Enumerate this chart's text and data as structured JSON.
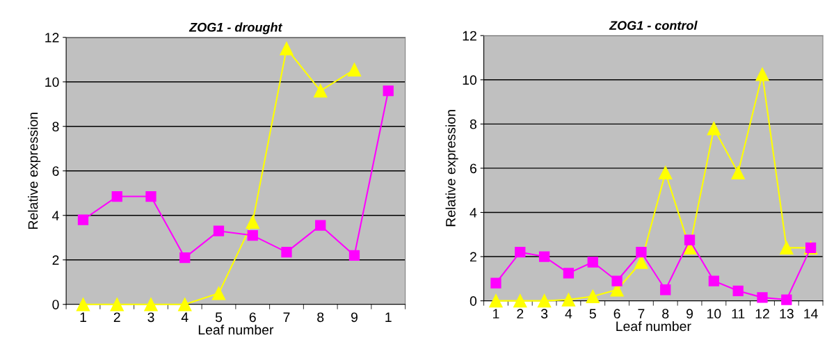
{
  "chart_data": [
    {
      "type": "line",
      "title": "ZOG1 - drought",
      "xlabel": "Leaf number",
      "ylabel": "Relative expression",
      "categories": [
        "1",
        "2",
        "3",
        "4",
        "5",
        "6",
        "7",
        "8",
        "9",
        "1"
      ],
      "series": [
        {
          "color": "#ff00ff",
          "marker": "square",
          "values": [
            3.8,
            4.85,
            4.85,
            2.1,
            3.3,
            3.1,
            2.35,
            3.55,
            2.2,
            9.6
          ]
        },
        {
          "color": "#ffff00",
          "marker": "triangle",
          "values": [
            0,
            0,
            0,
            0,
            0.5,
            3.7,
            11.5,
            9.6,
            10.55,
            null
          ]
        }
      ],
      "ylim": [
        0,
        12
      ],
      "yticks": [
        0,
        2,
        4,
        6,
        8,
        10,
        12
      ],
      "grid": "y",
      "legend": false
    },
    {
      "type": "line",
      "title": "ZOG1 - control",
      "xlabel": "Leaf number",
      "ylabel": "Relative expression",
      "categories": [
        "1",
        "2",
        "3",
        "4",
        "5",
        "6",
        "7",
        "8",
        "9",
        "10",
        "11",
        "12",
        "13",
        "14"
      ],
      "series": [
        {
          "color": "#ff00ff",
          "marker": "square",
          "values": [
            0.8,
            2.2,
            2.0,
            1.25,
            1.75,
            0.9,
            2.2,
            0.5,
            2.75,
            0.9,
            0.45,
            0.15,
            0.05,
            2.4
          ]
        },
        {
          "color": "#ffff00",
          "marker": "triangle",
          "values": [
            0,
            0,
            0,
            0.05,
            0.2,
            0.5,
            1.75,
            5.8,
            2.4,
            7.8,
            5.8,
            10.25,
            2.4,
            2.4
          ]
        }
      ],
      "ylim": [
        0,
        12
      ],
      "yticks": [
        0,
        2,
        4,
        6,
        8,
        10,
        12
      ],
      "grid": "y",
      "legend": false
    }
  ]
}
